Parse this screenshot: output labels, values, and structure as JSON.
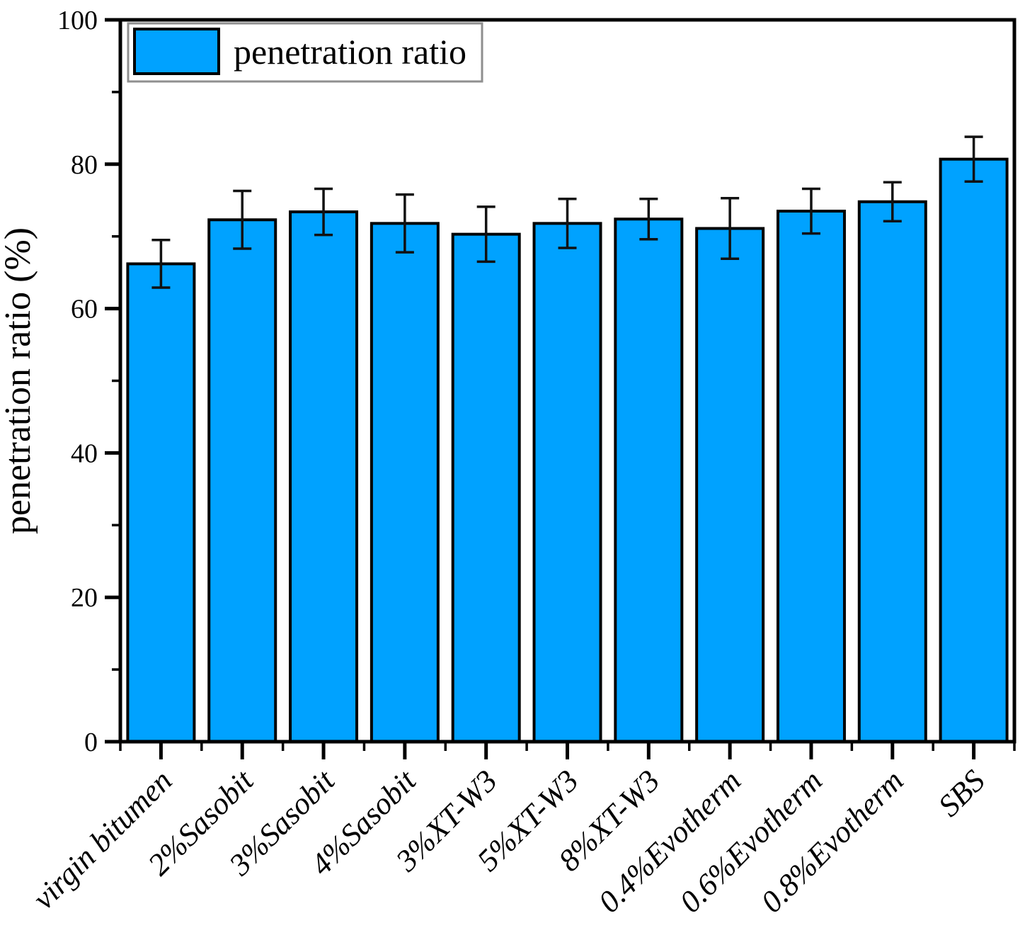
{
  "figure": {
    "kind": "scientific bar chart",
    "background_color": "#ffffff"
  },
  "chart_data": {
    "type": "bar",
    "title": "",
    "xlabel": "",
    "ylabel": "penetration ratio (%)",
    "legend": {
      "label": "penetration ratio",
      "position": "top-left",
      "swatch_color": "#00A2FF",
      "border_color": "#8f8f8f"
    },
    "categories": [
      "virgin bitumen",
      "2%Sasobit",
      "3%Sasobit",
      "4%Sasobit",
      "3%XT-W3",
      "5%XT-W3",
      "8%XT-W3",
      "0.4%Evotherm",
      "0.6%Evotherm",
      "0.8%Evotherm",
      "SBS"
    ],
    "values": [
      66.2,
      72.3,
      73.4,
      71.8,
      70.3,
      71.8,
      72.4,
      71.1,
      73.5,
      74.8,
      80.7
    ],
    "errors": [
      3.3,
      4.0,
      3.2,
      4.0,
      3.8,
      3.4,
      2.8,
      4.2,
      3.1,
      2.7,
      3.1
    ],
    "ylim": [
      0,
      100
    ],
    "y_major_step": 20,
    "y_minor_step": 10,
    "y_tick_labels": [
      "0",
      "20",
      "40",
      "60",
      "80",
      "100"
    ],
    "grid": "off",
    "bar_color": "#00A2FF",
    "bar_border_color": "#000000",
    "error_bar_color": "#111111",
    "axis_color": "#000000",
    "text_color": "#000000",
    "x_tick_label_rotation_deg": -45
  }
}
